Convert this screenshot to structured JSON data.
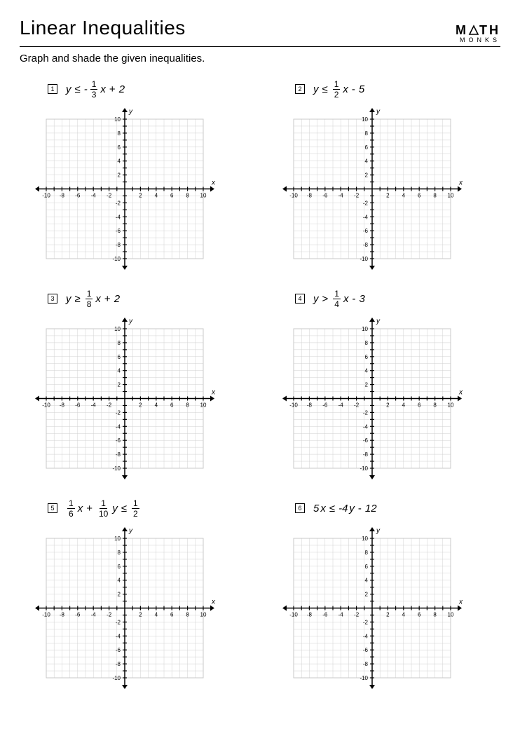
{
  "title": "Linear Inequalities",
  "brand": {
    "line1_a": "M",
    "line1_b": "TH",
    "line2": "MONKS"
  },
  "instructions": "Graph and shade the given inequalities.",
  "grid": {
    "xmin": -10,
    "xmax": 10,
    "ymin": -10,
    "ymax": 10,
    "major_step": 2,
    "x_ticks": [
      -10,
      -8,
      -6,
      -4,
      -2,
      2,
      4,
      6,
      8,
      10
    ],
    "y_ticks": [
      -10,
      -8,
      -6,
      -4,
      -2,
      2,
      4,
      6,
      8,
      10
    ],
    "grid_color": "#d0d0d0",
    "axis_color": "#000000",
    "background_color": "#ffffff",
    "tick_fontsize": 8,
    "axis_label_fontsize": 10,
    "x_label": "x",
    "y_label": "y"
  },
  "problems": [
    {
      "n": "1",
      "expr_html": "<span class='var'>y</span><span class='op'>≤</span>-<span class='frac'><span class='num'>1</span><span class='den'>3</span></span><span class='var'>x</span><span class='op'>+</span>2"
    },
    {
      "n": "2",
      "expr_html": "<span class='var'>y</span><span class='op'>≤</span><span class='frac'><span class='num'>1</span><span class='den'>2</span></span><span class='var'>x</span><span class='op'>-</span>5"
    },
    {
      "n": "3",
      "expr_html": "<span class='var'>y</span><span class='op'>≥</span><span class='frac'><span class='num'>1</span><span class='den'>8</span></span><span class='var'>x</span><span class='op'>+</span>2"
    },
    {
      "n": "4",
      "expr_html": "<span class='var'>y</span><span class='op'>&gt;</span><span class='frac'><span class='num'>1</span><span class='den'>4</span></span><span class='var'>x</span><span class='op'>-</span>3"
    },
    {
      "n": "5",
      "expr_html": "<span class='frac'><span class='num'>1</span><span class='den'>6</span></span><span class='var'>x</span><span class='op'>+</span><span class='frac'><span class='num'>1</span><span class='den'>10</span></span><span class='var'>y</span><span class='op'>≤</span><span class='frac'><span class='num'>1</span><span class='den'>2</span></span>"
    },
    {
      "n": "6",
      "expr_html": "5<span class='var'>x</span><span class='op'>≤</span>-4<span class='var'>y</span><span class='op'>-</span>12"
    }
  ]
}
